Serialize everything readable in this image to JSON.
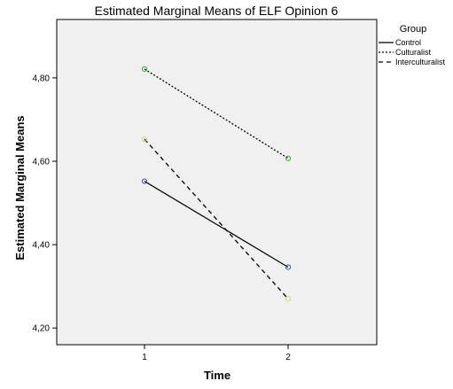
{
  "chart_data": {
    "type": "line",
    "title": "Estimated Marginal Means of ELF Opinion 6",
    "xlabel": "Time",
    "ylabel": "Estimated Marginal Means",
    "categories": [
      "1",
      "2"
    ],
    "ylim": [
      4.16,
      4.94
    ],
    "yticks": [
      "4,20",
      "4,40",
      "4,60",
      "4,80"
    ],
    "ytick_values": [
      4.2,
      4.4,
      4.6,
      4.8
    ],
    "grid": false,
    "legend": {
      "title": "Group",
      "position": "right"
    },
    "series": [
      {
        "name": "Control",
        "values": [
          4.552,
          4.346
        ],
        "color": "#000000",
        "marker_color": "#3a4fa0",
        "line_style": "solid"
      },
      {
        "name": "Culturalist",
        "values": [
          4.821,
          4.607
        ],
        "color": "#000000",
        "marker_color": "#3aa83a",
        "line_style": "dotted"
      },
      {
        "name": "Interculturalist",
        "values": [
          4.653,
          4.27
        ],
        "color": "#000000",
        "marker_color": "#d4d47a",
        "line_style": "dashed"
      }
    ]
  }
}
